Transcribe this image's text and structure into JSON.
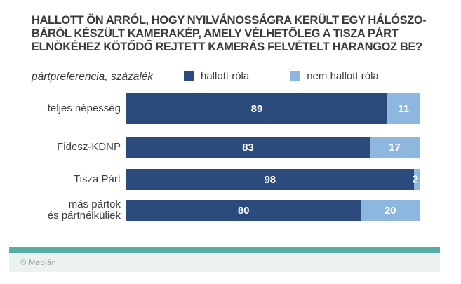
{
  "title_lines": [
    "HALLOTT ÖN ARRÓL, HOGY NYILVÁNOSSÁGRA KERÜLT EGY HÁLÓSZO-",
    "BÁRÓL KÉSZÜLT KAMERAKÉP, AMELY VÉLHETŐLEG A TISZA PÁRT",
    "ELNÖKÉHEZ KÖTŐDŐ REJTETT KAMERÁS FELVÉTELT HARANGOZ BE?"
  ],
  "subtitle": "pártpreferencia, százalék",
  "legend": [
    {
      "label": "hallott róla",
      "color": "#2a4b7c"
    },
    {
      "label": "nem hallott róla",
      "color": "#8eb7df"
    }
  ],
  "footer": {
    "credit": "© Medián"
  },
  "colors": {
    "heard": "#2a4b7c",
    "not_heard": "#8eb7df",
    "accent_bar": "#57aca5",
    "footer_bg": "#ebf2f1",
    "footer_text": "#90a19f",
    "title_text": "#3a3a3a"
  },
  "chart_data": {
    "type": "bar",
    "orientation": "horizontal",
    "stacked": true,
    "unit": "percent",
    "xlim": [
      0,
      100
    ],
    "title": "HALLOTT ÖN ARRÓL, HOGY NYILVÁNOSSÁGRA KERÜLT EGY HÁLÓSZOBÁRÓL KÉSZÜLT KAMERAKÉP, AMELY VÉLHETŐLEG A TISZA PÁRT ELNÖKÉHEZ KÖTŐDŐ REJTETT KAMERÁS FELVÉTELT HARANGOZ BE?",
    "subtitle": "pártpreferencia, százalék",
    "legend_position": "top",
    "value_labels": true,
    "categories": [
      "teljes népesség",
      "Fidesz-KDNP",
      "Tisza Párt",
      "más pártok és pártnélküliek"
    ],
    "category_lines": [
      [
        "teljes népesség"
      ],
      [
        "Fidesz-KDNP"
      ],
      [
        "Tisza Párt"
      ],
      [
        "más pártok",
        "és pártnélküliek"
      ]
    ],
    "series": [
      {
        "name": "hallott róla",
        "color": "#2a4b7c",
        "values": [
          89,
          83,
          98,
          80
        ]
      },
      {
        "name": "nem hallott róla",
        "color": "#8eb7df",
        "values": [
          11,
          17,
          2,
          20
        ]
      }
    ]
  }
}
